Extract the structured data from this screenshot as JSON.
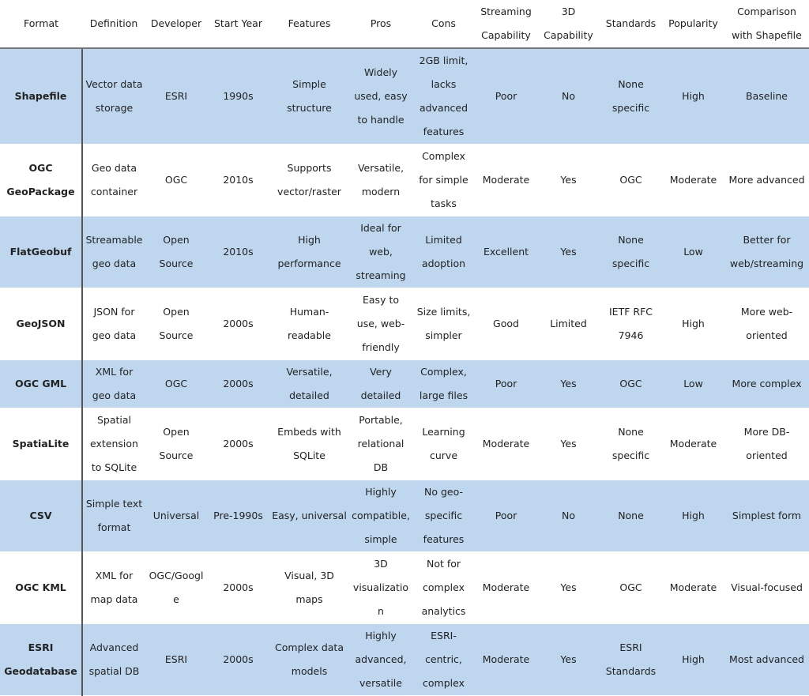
{
  "table": {
    "header": [
      "Format",
      "Definition",
      "Developer",
      "Start Year",
      "Features",
      "Pros",
      "Cons",
      "Streaming Capability",
      "3D Capability",
      "Standards",
      "Popularity",
      "Comparison with Shapefile"
    ],
    "rows": [
      [
        "Shapefile",
        "Vector data storage",
        "ESRI",
        "1990s",
        "Simple structure",
        "Widely used, easy to handle",
        "2GB limit, lacks advanced features",
        "Poor",
        "No",
        "None specific",
        "High",
        "Baseline"
      ],
      [
        "OGC GeoPackage",
        "Geo data container",
        "OGC",
        "2010s",
        "Supports vector/raster",
        "Versatile, modern",
        "Complex for simple tasks",
        "Moderate",
        "Yes",
        "OGC",
        "Moderate",
        "More advanced"
      ],
      [
        "FlatGeobuf",
        "Streamable geo data",
        "Open Source",
        "2010s",
        "High performance",
        "Ideal for web, streaming",
        "Limited adoption",
        "Excellent",
        "Yes",
        "None specific",
        "Low",
        "Better for web/streaming"
      ],
      [
        "GeoJSON",
        "JSON for geo data",
        "Open Source",
        "2000s",
        "Human-readable",
        "Easy to use, web-friendly",
        "Size limits, simpler",
        "Good",
        "Limited",
        "IETF RFC 7946",
        "High",
        "More web-oriented"
      ],
      [
        "OGC GML",
        "XML for geo data",
        "OGC",
        "2000s",
        "Versatile, detailed",
        "Very detailed",
        "Complex, large files",
        "Poor",
        "Yes",
        "OGC",
        "Low",
        "More complex"
      ],
      [
        "SpatiaLite",
        "Spatial extension to SQLite",
        "Open Source",
        "2000s",
        "Embeds with SQLite",
        "Portable, relational DB",
        "Learning curve",
        "Moderate",
        "Yes",
        "None specific",
        "Moderate",
        "More DB-oriented"
      ],
      [
        "CSV",
        "Simple text format",
        "Universal",
        "Pre-1990s",
        "Easy, universal",
        "Highly compatible, simple",
        "No geo-specific features",
        "Poor",
        "No",
        "None",
        "High",
        "Simplest form"
      ],
      [
        "OGC KML",
        "XML for map data",
        "OGC/Google",
        "2000s",
        "Visual, 3D maps",
        "3D visualization",
        "Not for complex analytics",
        "Moderate",
        "Yes",
        "OGC",
        "Moderate",
        "Visual-focused"
      ],
      [
        "ESRI Geodatabase",
        "Advanced spatial DB",
        "ESRI",
        "2000s",
        "Complex data models",
        "Highly advanced, versatile",
        "ESRI-centric, complex",
        "Moderate",
        "Yes",
        "ESRI Standards",
        "High",
        "Most advanced"
      ]
    ]
  }
}
